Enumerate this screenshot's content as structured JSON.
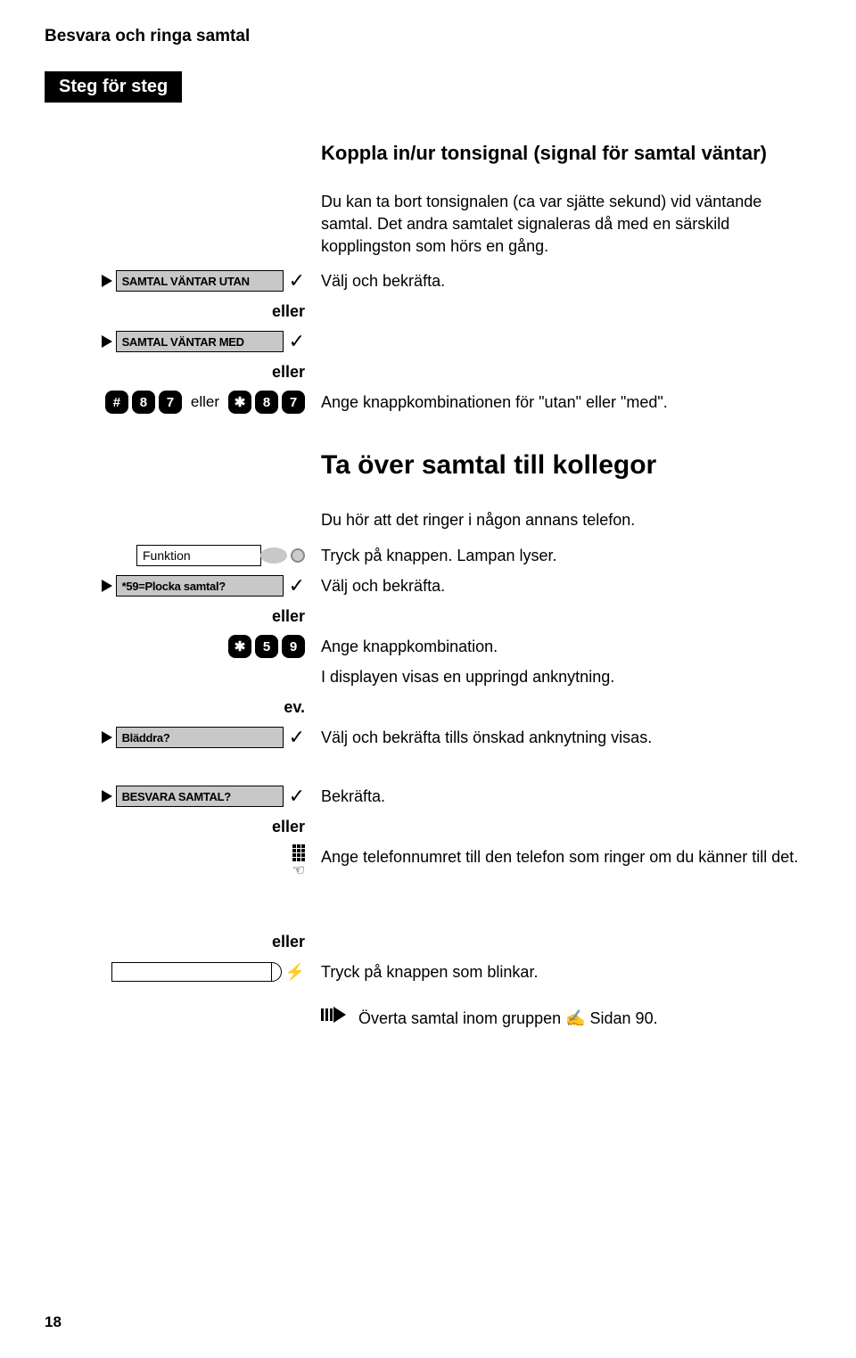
{
  "header": "Besvara och ringa samtal",
  "step_header": "Steg för steg",
  "section1": {
    "title": "Koppla in/ur tonsignal (signal för samtal väntar)",
    "intro": "Du kan ta bort tonsignalen (ca var sjätte sekund) vid väntande samtal. Det andra samtalet signaleras då med en särskild kopplingston som hörs en gång.",
    "menu1": "SAMTAL VÄNTAR UTAN",
    "menu2": "SAMTAL VÄNTAR MED",
    "desc1": "Välj och bekräfta.",
    "eller": "eller",
    "keys_hash": "#",
    "keys_8": "8",
    "keys_7": "7",
    "keys_star": "✱",
    "desc2": "Ange knappkombinationen för \"utan\" eller \"med\"."
  },
  "section2": {
    "title": "Ta över samtal till kollegor",
    "intro": "Du hör att det ringer i någon annans telefon.",
    "funktion": "Funktion",
    "desc_funktion": "Tryck på knappen. Lampan lyser.",
    "menu3": "*59=Plocka samtal?",
    "desc3": "Välj och bekräfta.",
    "eller": "eller",
    "keys_star": "✱",
    "keys_5": "5",
    "keys_9": "9",
    "desc4": "Ange knappkombination.",
    "desc5": "I displayen visas en uppringd anknytning.",
    "ev": "ev.",
    "menu4": "Bläddra?",
    "desc6": "Välj och bekräfta tills önskad anknytning visas.",
    "menu5": "BESVARA SAMTAL?",
    "desc7": "Bekräfta.",
    "desc8": "Ange telefonnumret till den telefon som ringer om du känner till det.",
    "desc9": "Tryck på knappen som blinkar.",
    "desc10": "Överta samtal inom gruppen ✍ Sidan 90."
  },
  "page_number": "18",
  "colors": {
    "display_bg": "#c8c8c8",
    "black": "#000000",
    "white": "#ffffff"
  }
}
